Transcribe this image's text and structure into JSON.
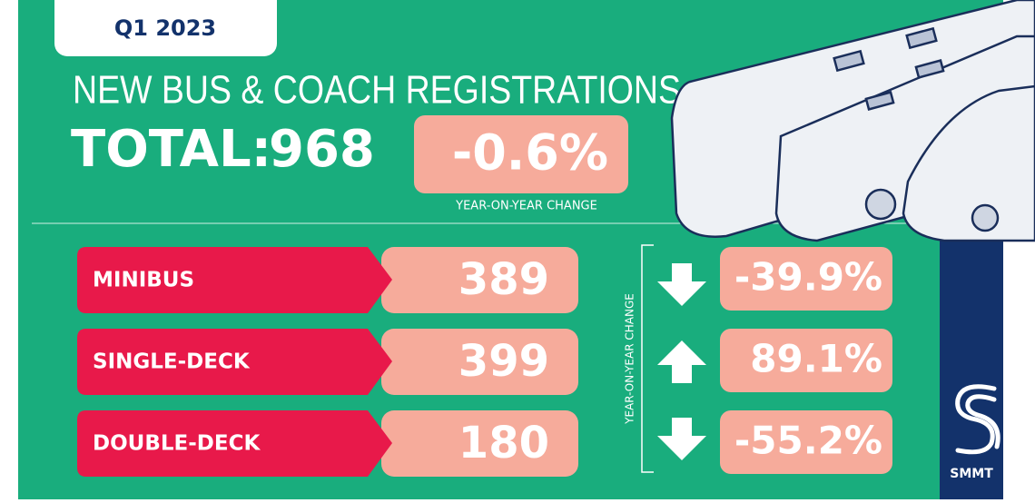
{
  "period": "Q1 2023",
  "title": "NEW BUS & COACH REGISTRATIONS",
  "total": {
    "label": "TOTAL:",
    "value": 968
  },
  "overall_change": {
    "value": "-0.6%",
    "label": "YEAR-ON-YEAR CHANGE"
  },
  "side_label": "YEAR-ON-YEAR CHANGE",
  "rows": [
    {
      "label": "MINIBUS",
      "count": 389,
      "change": "-39.9%"
    },
    {
      "label": "SINGLE-DECK",
      "count": 399,
      "change": "89.1%"
    },
    {
      "label": "DOUBLE-DECK",
      "count": 180,
      "change": "-55.2%"
    }
  ],
  "logo": "SMMT"
}
